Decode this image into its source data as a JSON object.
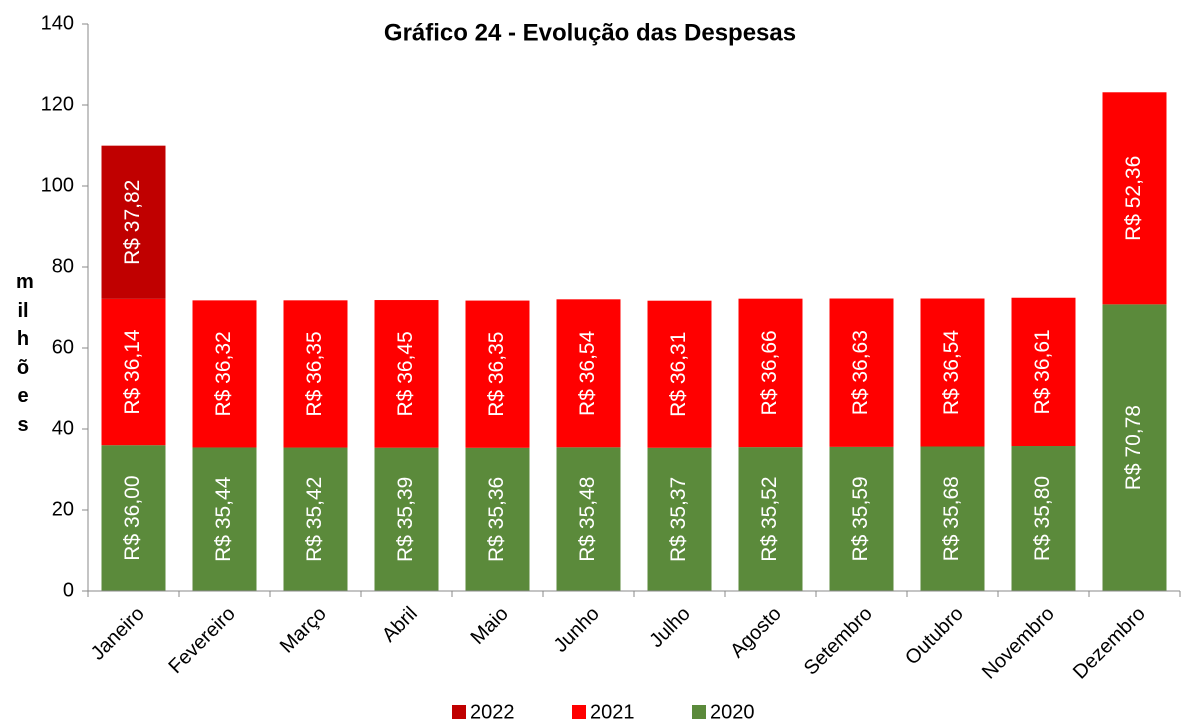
{
  "chart_data": {
    "type": "bar",
    "stacked": true,
    "title": "Gráfico 24 - Evolução das Despesas",
    "y_label": "milhões",
    "categories": [
      "Janeiro",
      "Fevereiro",
      "Março",
      "Abril",
      "Maio",
      "Junho",
      "Julho",
      "Agosto",
      "Setembro",
      "Outubro",
      "Novembro",
      "Dezembro"
    ],
    "series": [
      {
        "name": "2020",
        "color": "#5b8a3b",
        "values": [
          36.0,
          35.44,
          35.42,
          35.39,
          35.36,
          35.48,
          35.37,
          35.52,
          35.59,
          35.68,
          35.8,
          70.78
        ],
        "value_labels": [
          "R$ 36,00",
          "R$ 35,44",
          "R$ 35,42",
          "R$ 35,39",
          "R$ 35,36",
          "R$ 35,48",
          "R$ 35,37",
          "R$ 35,52",
          "R$ 35,59",
          "R$ 35,68",
          "R$ 35,80",
          "R$ 70,78"
        ]
      },
      {
        "name": "2021",
        "color": "#ff0000",
        "values": [
          36.14,
          36.32,
          36.35,
          36.45,
          36.35,
          36.54,
          36.31,
          36.66,
          36.63,
          36.54,
          36.61,
          52.36
        ],
        "value_labels": [
          "R$ 36,14",
          "R$ 36,32",
          "R$ 36,35",
          "R$ 36,45",
          "R$ 36,35",
          "R$ 36,54",
          "R$ 36,31",
          "R$ 36,66",
          "R$ 36,63",
          "R$ 36,54",
          "R$ 36,61",
          "R$ 52,36"
        ]
      },
      {
        "name": "2022",
        "color": "#c00000",
        "values": [
          37.82,
          null,
          null,
          null,
          null,
          null,
          null,
          null,
          null,
          null,
          null,
          null
        ],
        "value_labels": [
          "R$ 37,82",
          null,
          null,
          null,
          null,
          null,
          null,
          null,
          null,
          null,
          null,
          null
        ]
      }
    ],
    "ylim": [
      0,
      140
    ],
    "yticks": [
      0,
      20,
      40,
      60,
      80,
      100,
      120,
      140
    ],
    "legend": "bottom"
  }
}
